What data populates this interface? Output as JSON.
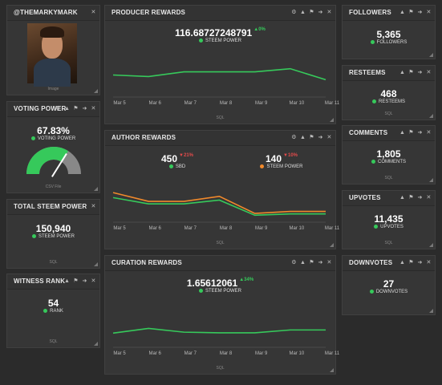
{
  "colors": {
    "green": "#36c95b",
    "orange": "#f0892b",
    "red": "#e24b4b",
    "bg": "#2b2b2b",
    "panel": "#363636"
  },
  "profile": {
    "title": "@THEMARKYMARK",
    "caption": "Image"
  },
  "voting": {
    "title": "VOTING POWER",
    "value": "67.83%",
    "label": "VOTING POWER",
    "source": "CSV File",
    "gauge_fraction": 0.6783
  },
  "total_power": {
    "title": "TOTAL STEEM POWER",
    "value": "150,940",
    "label": "STEEM POWER",
    "source": "SQL"
  },
  "witness": {
    "title": "WITNESS RANK",
    "value": "54",
    "label": "RANK",
    "source": "SQL"
  },
  "producer": {
    "title": "PRODUCER REWARDS",
    "value": "116.68727248791",
    "change": "0%",
    "label": "STEEM POWER",
    "source": "SQL"
  },
  "author": {
    "title": "AUTHOR REWARDS",
    "sbd_value": "450",
    "sbd_change": "21%",
    "sbd_label": "SBD",
    "sp_value": "140",
    "sp_change": "10%",
    "sp_label": "STEEM POWER",
    "source": "SQL"
  },
  "curation": {
    "title": "CURATION REWARDS",
    "value": "1.65612061",
    "change": "34%",
    "label": "STEEM POWER",
    "source": "SQL"
  },
  "followers": {
    "title": "FOLLOWERS",
    "value": "5,365",
    "label": "FOLLOWERS"
  },
  "resteems": {
    "title": "RESTEEMS",
    "value": "468",
    "label": "RESTEEMS",
    "source": "SQL"
  },
  "comments": {
    "title": "COMMENTS",
    "value": "1,805",
    "label": "COMMENTS",
    "source": "SQL"
  },
  "upvotes": {
    "title": "UPVOTES",
    "value": "11,435",
    "label": "UPVOTES",
    "source": "SQL"
  },
  "downvotes": {
    "title": "DOWNVOTES",
    "value": "27",
    "label": "DOWNVOTES"
  },
  "chart_data": [
    {
      "type": "line",
      "categories": [
        "Mar 5",
        "Mar 6",
        "Mar 7",
        "Mar 8",
        "Mar 9",
        "Mar 10",
        "Mar 11"
      ],
      "series": [
        {
          "values": [
            0.6,
            0.55,
            0.7,
            0.7,
            0.7,
            0.8,
            0.45
          ]
        }
      ],
      "ylim": [
        0,
        1.2
      ]
    },
    {
      "type": "line",
      "categories": [
        "Mar 5",
        "Mar 6",
        "Mar 7",
        "Mar 8",
        "Mar 9",
        "Mar 10",
        "Mar 11"
      ],
      "series": [
        {
          "name": "SBD",
          "color": "#36c95b",
          "values": [
            0.85,
            0.6,
            0.6,
            0.75,
            0.15,
            0.2,
            0.2
          ]
        },
        {
          "name": "STEEM POWER",
          "color": "#f0892b",
          "values": [
            1.05,
            0.7,
            0.7,
            0.9,
            0.22,
            0.3,
            0.3
          ]
        }
      ],
      "ylim": [
        0,
        1.5
      ]
    },
    {
      "type": "line",
      "categories": [
        "Mar 5",
        "Mar 6",
        "Mar 7",
        "Mar 8",
        "Mar 9",
        "Mar 10",
        "Mar 11"
      ],
      "series": [
        {
          "values": [
            0.35,
            0.5,
            0.38,
            0.36,
            0.36,
            0.45,
            0.45
          ]
        }
      ],
      "ylim": [
        0,
        1.2
      ]
    }
  ]
}
